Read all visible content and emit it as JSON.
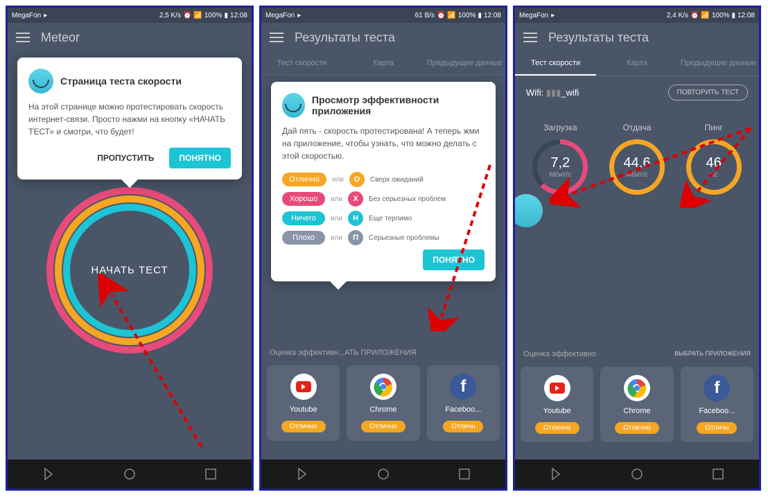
{
  "status": {
    "carrier": "MegaFon",
    "speed1": "2,5 K/s",
    "speed2": "61 B/s",
    "speed3": "2,4 K/s",
    "battery": "100%",
    "time": "12:08"
  },
  "screen1": {
    "title": "Meteor",
    "popup": {
      "title": "Страница теста скорости",
      "text": "На этой странице можно протестировать скорость интернет-связи. Просто нажми на кнопку «НАЧАТЬ ТЕСТ» и смотри, что будет!",
      "skip": "ПРОПУСТИТЬ",
      "ok": "ПОНЯТНО"
    },
    "start_button": "НАЧАТЬ ТЕСТ"
  },
  "screen2": {
    "title": "Результаты теста",
    "tabs": [
      "Тест скорости",
      "Карта",
      "Предыдущие данные"
    ],
    "popup": {
      "title": "Просмотр эффективности приложения",
      "text": "Дай пять - скорость протестирована! А теперь жми на приложение, чтобы узнать, что можно делать с этой скоростью.",
      "ok": "ПОНЯТНО"
    },
    "ratings": [
      {
        "label": "Отлично",
        "color": "#f5a623",
        "letter": "О",
        "desc": "Сверх ожиданий"
      },
      {
        "label": "Хорошо",
        "color": "#e84a7a",
        "letter": "Х",
        "desc": "Без серьезных проблем"
      },
      {
        "label": "Ничего",
        "color": "#1cc4d4",
        "letter": "Н",
        "desc": "Еще терпимо"
      },
      {
        "label": "Плохо",
        "color": "#8a95a8",
        "letter": "П",
        "desc": "Серьезные проблемы"
      }
    ],
    "apps_header": "Оценка эффективн...АТЬ ПРИЛОЖЕНИЯ"
  },
  "screen3": {
    "title": "Результаты теста",
    "tabs": [
      "Тест скорости",
      "Карта",
      "Предыдущие данные"
    ],
    "wifi_label": "Wifi:",
    "wifi_name": "_wifi",
    "retry": "ПОВТОРИТЬ ТЕСТ",
    "metrics": [
      {
        "label": "Загрузка",
        "value": "7,2",
        "unit": "Мбит/с",
        "color": "#e84a7a",
        "arc": 225
      },
      {
        "label": "Отдача",
        "value": "44,6",
        "unit": "Мбит/с",
        "color": "#f5a623",
        "arc": 360
      },
      {
        "label": "Пинг",
        "value": "46",
        "unit": "мс",
        "color": "#f5a623",
        "arc": 360
      }
    ],
    "apps_header_left": "Оценка эффективно",
    "apps_header_right": "ВЫБРАТЬ ПРИЛОЖЕНИЯ"
  },
  "apps": [
    {
      "name": "Youtube",
      "rating": "Отлично",
      "bg": "#fff",
      "icon_bg": "#e62117"
    },
    {
      "name": "Chrome",
      "rating": "Отлично",
      "bg": "#fff"
    },
    {
      "name": "Faceboo...",
      "rating": "Отличн",
      "bg": "#3b5998"
    }
  ],
  "rating_color": "#f5a623",
  "or": "или"
}
